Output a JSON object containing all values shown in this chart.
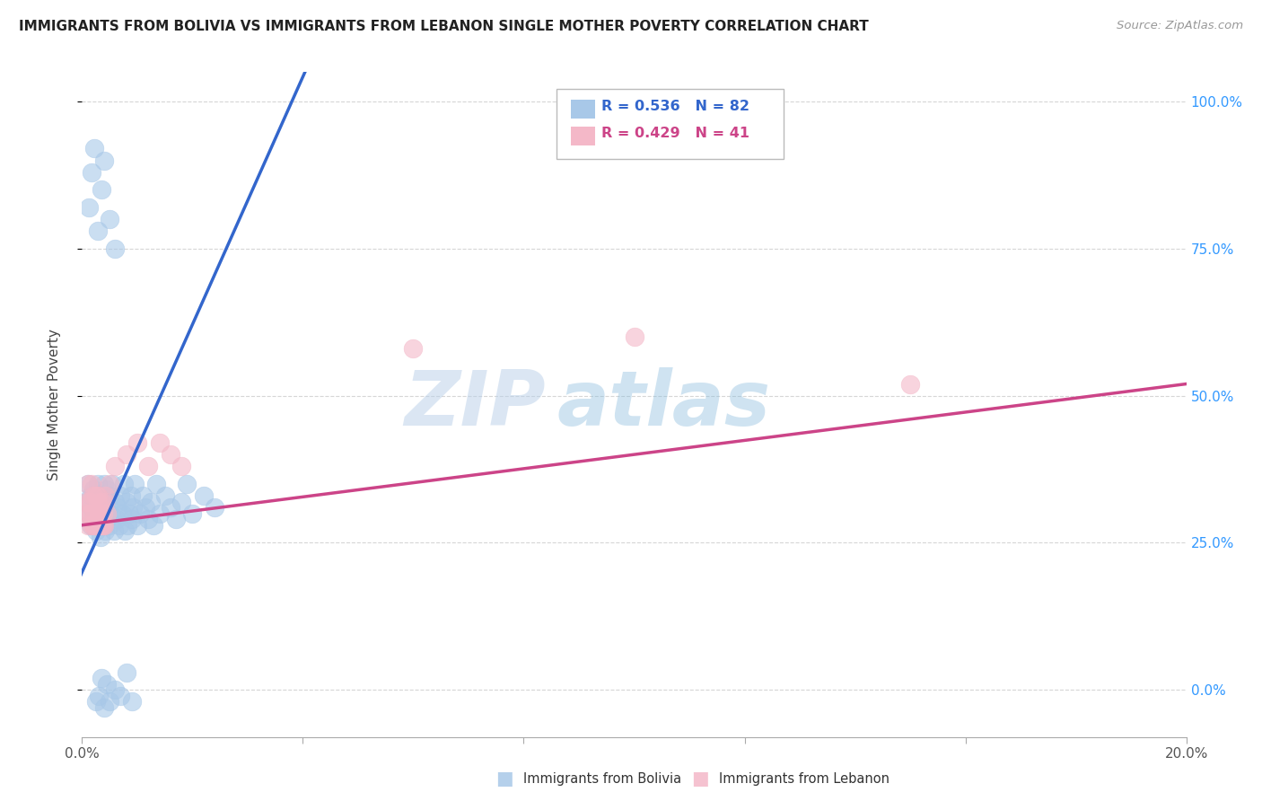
{
  "title": "IMMIGRANTS FROM BOLIVIA VS IMMIGRANTS FROM LEBANON SINGLE MOTHER POVERTY CORRELATION CHART",
  "source": "Source: ZipAtlas.com",
  "ylabel": "Single Mother Poverty",
  "legend_bolivia": {
    "R": "0.536",
    "N": "82",
    "color": "#a8c8e8"
  },
  "legend_lebanon": {
    "R": "0.429",
    "N": "41",
    "color": "#f4b8c8"
  },
  "bolivia_color": "#a8c8e8",
  "lebanon_color": "#f4b8c8",
  "trendline_bolivia_color": "#3366cc",
  "trendline_lebanon_color": "#cc4488",
  "watermark_zip": "ZIP",
  "watermark_atlas": "atlas",
  "background_color": "#ffffff",
  "grid_color": "#cccccc",
  "xlim": [
    0.0,
    0.2
  ],
  "ylim": [
    -0.08,
    1.05
  ],
  "right_ytick_labels": [
    "100.0%",
    "75.0%",
    "50.0%",
    "25.0%",
    "0.0%"
  ],
  "right_ytick_vals": [
    1.0,
    0.75,
    0.5,
    0.25,
    0.0
  ],
  "bolivia_x": [
    0.0008,
    0.001,
    0.0012,
    0.0015,
    0.0015,
    0.0018,
    0.002,
    0.002,
    0.0022,
    0.0025,
    0.0025,
    0.0028,
    0.003,
    0.003,
    0.0032,
    0.0033,
    0.0035,
    0.0035,
    0.0038,
    0.0038,
    0.004,
    0.004,
    0.0042,
    0.0042,
    0.0045,
    0.0045,
    0.0048,
    0.005,
    0.005,
    0.0052,
    0.0055,
    0.0058,
    0.006,
    0.0062,
    0.0065,
    0.0068,
    0.007,
    0.0072,
    0.0075,
    0.0078,
    0.008,
    0.0082,
    0.0085,
    0.0088,
    0.009,
    0.0092,
    0.0095,
    0.01,
    0.0105,
    0.011,
    0.0115,
    0.012,
    0.0125,
    0.013,
    0.0135,
    0.014,
    0.015,
    0.016,
    0.017,
    0.018,
    0.019,
    0.02,
    0.022,
    0.024,
    0.0012,
    0.0018,
    0.0022,
    0.0028,
    0.0035,
    0.004,
    0.005,
    0.006,
    0.0025,
    0.003,
    0.0035,
    0.004,
    0.0045,
    0.005,
    0.006,
    0.007,
    0.008,
    0.009
  ],
  "bolivia_y": [
    0.32,
    0.35,
    0.3,
    0.28,
    0.33,
    0.31,
    0.29,
    0.34,
    0.3,
    0.27,
    0.32,
    0.35,
    0.28,
    0.33,
    0.3,
    0.26,
    0.31,
    0.29,
    0.32,
    0.28,
    0.3,
    0.35,
    0.27,
    0.32,
    0.29,
    0.34,
    0.31,
    0.28,
    0.33,
    0.3,
    0.35,
    0.27,
    0.32,
    0.29,
    0.31,
    0.28,
    0.33,
    0.3,
    0.35,
    0.27,
    0.32,
    0.28,
    0.3,
    0.33,
    0.29,
    0.31,
    0.35,
    0.28,
    0.3,
    0.33,
    0.31,
    0.29,
    0.32,
    0.28,
    0.35,
    0.3,
    0.33,
    0.31,
    0.29,
    0.32,
    0.35,
    0.3,
    0.33,
    0.31,
    0.82,
    0.88,
    0.92,
    0.78,
    0.85,
    0.9,
    0.8,
    0.75,
    -0.02,
    -0.01,
    0.02,
    -0.03,
    0.01,
    -0.02,
    0.0,
    -0.01,
    0.03,
    -0.02
  ],
  "lebanon_x": [
    0.0008,
    0.001,
    0.0012,
    0.0015,
    0.0018,
    0.002,
    0.0022,
    0.0025,
    0.0028,
    0.003,
    0.0032,
    0.0035,
    0.0038,
    0.004,
    0.0042,
    0.0045,
    0.001,
    0.0015,
    0.002,
    0.0025,
    0.003,
    0.0035,
    0.0008,
    0.0012,
    0.0018,
    0.0022,
    0.0028,
    0.0032,
    0.0038,
    0.0042,
    0.005,
    0.006,
    0.008,
    0.01,
    0.012,
    0.014,
    0.016,
    0.018,
    0.06,
    0.1,
    0.15
  ],
  "lebanon_y": [
    0.3,
    0.28,
    0.32,
    0.3,
    0.28,
    0.33,
    0.3,
    0.28,
    0.32,
    0.3,
    0.28,
    0.32,
    0.3,
    0.28,
    0.33,
    0.3,
    0.35,
    0.32,
    0.28,
    0.33,
    0.3,
    0.28,
    0.32,
    0.3,
    0.35,
    0.28,
    0.33,
    0.3,
    0.28,
    0.32,
    0.35,
    0.38,
    0.4,
    0.42,
    0.38,
    0.42,
    0.4,
    0.38,
    0.58,
    0.6,
    0.52
  ]
}
